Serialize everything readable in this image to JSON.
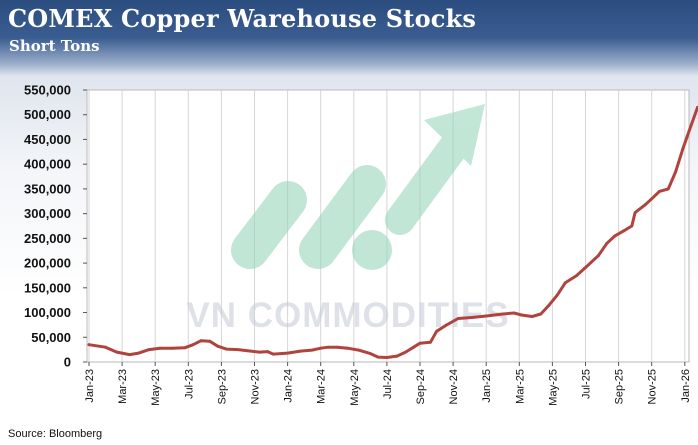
{
  "title": "COMEX Copper Warehouse Stocks",
  "subtitle": "Short Tons",
  "source": "Source: Bloomberg",
  "watermark": "VN COMMODITIES",
  "colors": {
    "line": "#b0433e",
    "header_top": "#2b4c7e",
    "watermark": "#7fc9a8",
    "watermark_text": "#c8ccd8"
  },
  "chart_data": {
    "type": "line",
    "title": "COMEX Copper Warehouse Stocks",
    "subtitle": "Short Tons",
    "xlabel": "",
    "ylabel": "",
    "ylim": [
      0,
      550000
    ],
    "yticks": [
      0,
      50000,
      100000,
      150000,
      200000,
      250000,
      300000,
      350000,
      400000,
      450000,
      500000,
      550000
    ],
    "ytick_labels": [
      "0",
      "50,000",
      "100,000",
      "150,000",
      "200,000",
      "250,000",
      "300,000",
      "350,000",
      "400,000",
      "450,000",
      "500,000",
      "550,000"
    ],
    "xticks": [
      "Jan-23",
      "Mar-23",
      "May-23",
      "Jul-23",
      "Sep-23",
      "Nov-23",
      "Jan-24",
      "Mar-24",
      "May-24",
      "Jul-24",
      "Sep-24",
      "Nov-24",
      "Jan-25",
      "Mar-25",
      "May-25",
      "Jul-25",
      "Sep-25",
      "Nov-25",
      "Jan-26"
    ],
    "grid": "vertical",
    "legend": "none",
    "series": [
      {
        "color": "#b0433e",
        "points": [
          [
            "2023-01-01",
            35000
          ],
          [
            "2023-02-01",
            30000
          ],
          [
            "2023-02-20",
            20000
          ],
          [
            "2023-03-15",
            15000
          ],
          [
            "2023-04-01",
            18000
          ],
          [
            "2023-04-20",
            25000
          ],
          [
            "2023-05-10",
            28000
          ],
          [
            "2023-06-01",
            28000
          ],
          [
            "2023-06-25",
            29000
          ],
          [
            "2023-07-10",
            35000
          ],
          [
            "2023-07-25",
            43000
          ],
          [
            "2023-08-10",
            42000
          ],
          [
            "2023-08-25",
            32000
          ],
          [
            "2023-09-10",
            26000
          ],
          [
            "2023-10-01",
            25000
          ],
          [
            "2023-10-25",
            22000
          ],
          [
            "2023-11-10",
            20000
          ],
          [
            "2023-11-25",
            21000
          ],
          [
            "2023-12-05",
            16000
          ],
          [
            "2024-01-01",
            18000
          ],
          [
            "2024-01-25",
            22000
          ],
          [
            "2024-02-15",
            24000
          ],
          [
            "2024-03-01",
            28000
          ],
          [
            "2024-03-15",
            30000
          ],
          [
            "2024-04-01",
            30000
          ],
          [
            "2024-04-20",
            28000
          ],
          [
            "2024-05-10",
            24000
          ],
          [
            "2024-06-01",
            17000
          ],
          [
            "2024-06-15",
            10000
          ],
          [
            "2024-07-01",
            9000
          ],
          [
            "2024-07-20",
            12000
          ],
          [
            "2024-08-05",
            20000
          ],
          [
            "2024-08-20",
            30000
          ],
          [
            "2024-09-01",
            38000
          ],
          [
            "2024-09-20",
            40000
          ],
          [
            "2024-10-01",
            62000
          ],
          [
            "2024-10-20",
            75000
          ],
          [
            "2024-11-10",
            88000
          ],
          [
            "2024-12-05",
            90000
          ],
          [
            "2025-01-01",
            93000
          ],
          [
            "2025-02-01",
            97000
          ],
          [
            "2025-02-20",
            99000
          ],
          [
            "2025-03-05",
            95000
          ],
          [
            "2025-03-25",
            92000
          ],
          [
            "2025-04-10",
            97000
          ],
          [
            "2025-04-25",
            115000
          ],
          [
            "2025-05-10",
            135000
          ],
          [
            "2025-05-25",
            160000
          ],
          [
            "2025-06-15",
            175000
          ],
          [
            "2025-07-05",
            195000
          ],
          [
            "2025-07-25",
            215000
          ],
          [
            "2025-08-10",
            240000
          ],
          [
            "2025-08-25",
            255000
          ],
          [
            "2025-09-10",
            265000
          ],
          [
            "2025-09-25",
            275000
          ],
          [
            "2025-10-01",
            302000
          ],
          [
            "2025-10-20",
            318000
          ],
          [
            "2025-11-01",
            330000
          ],
          [
            "2025-11-15",
            345000
          ],
          [
            "2025-12-01",
            350000
          ],
          [
            "2025-12-15",
            385000
          ],
          [
            "2025-12-28",
            430000
          ],
          [
            "2026-01-10",
            470000
          ],
          [
            "2026-01-25",
            515000
          ]
        ]
      }
    ]
  }
}
